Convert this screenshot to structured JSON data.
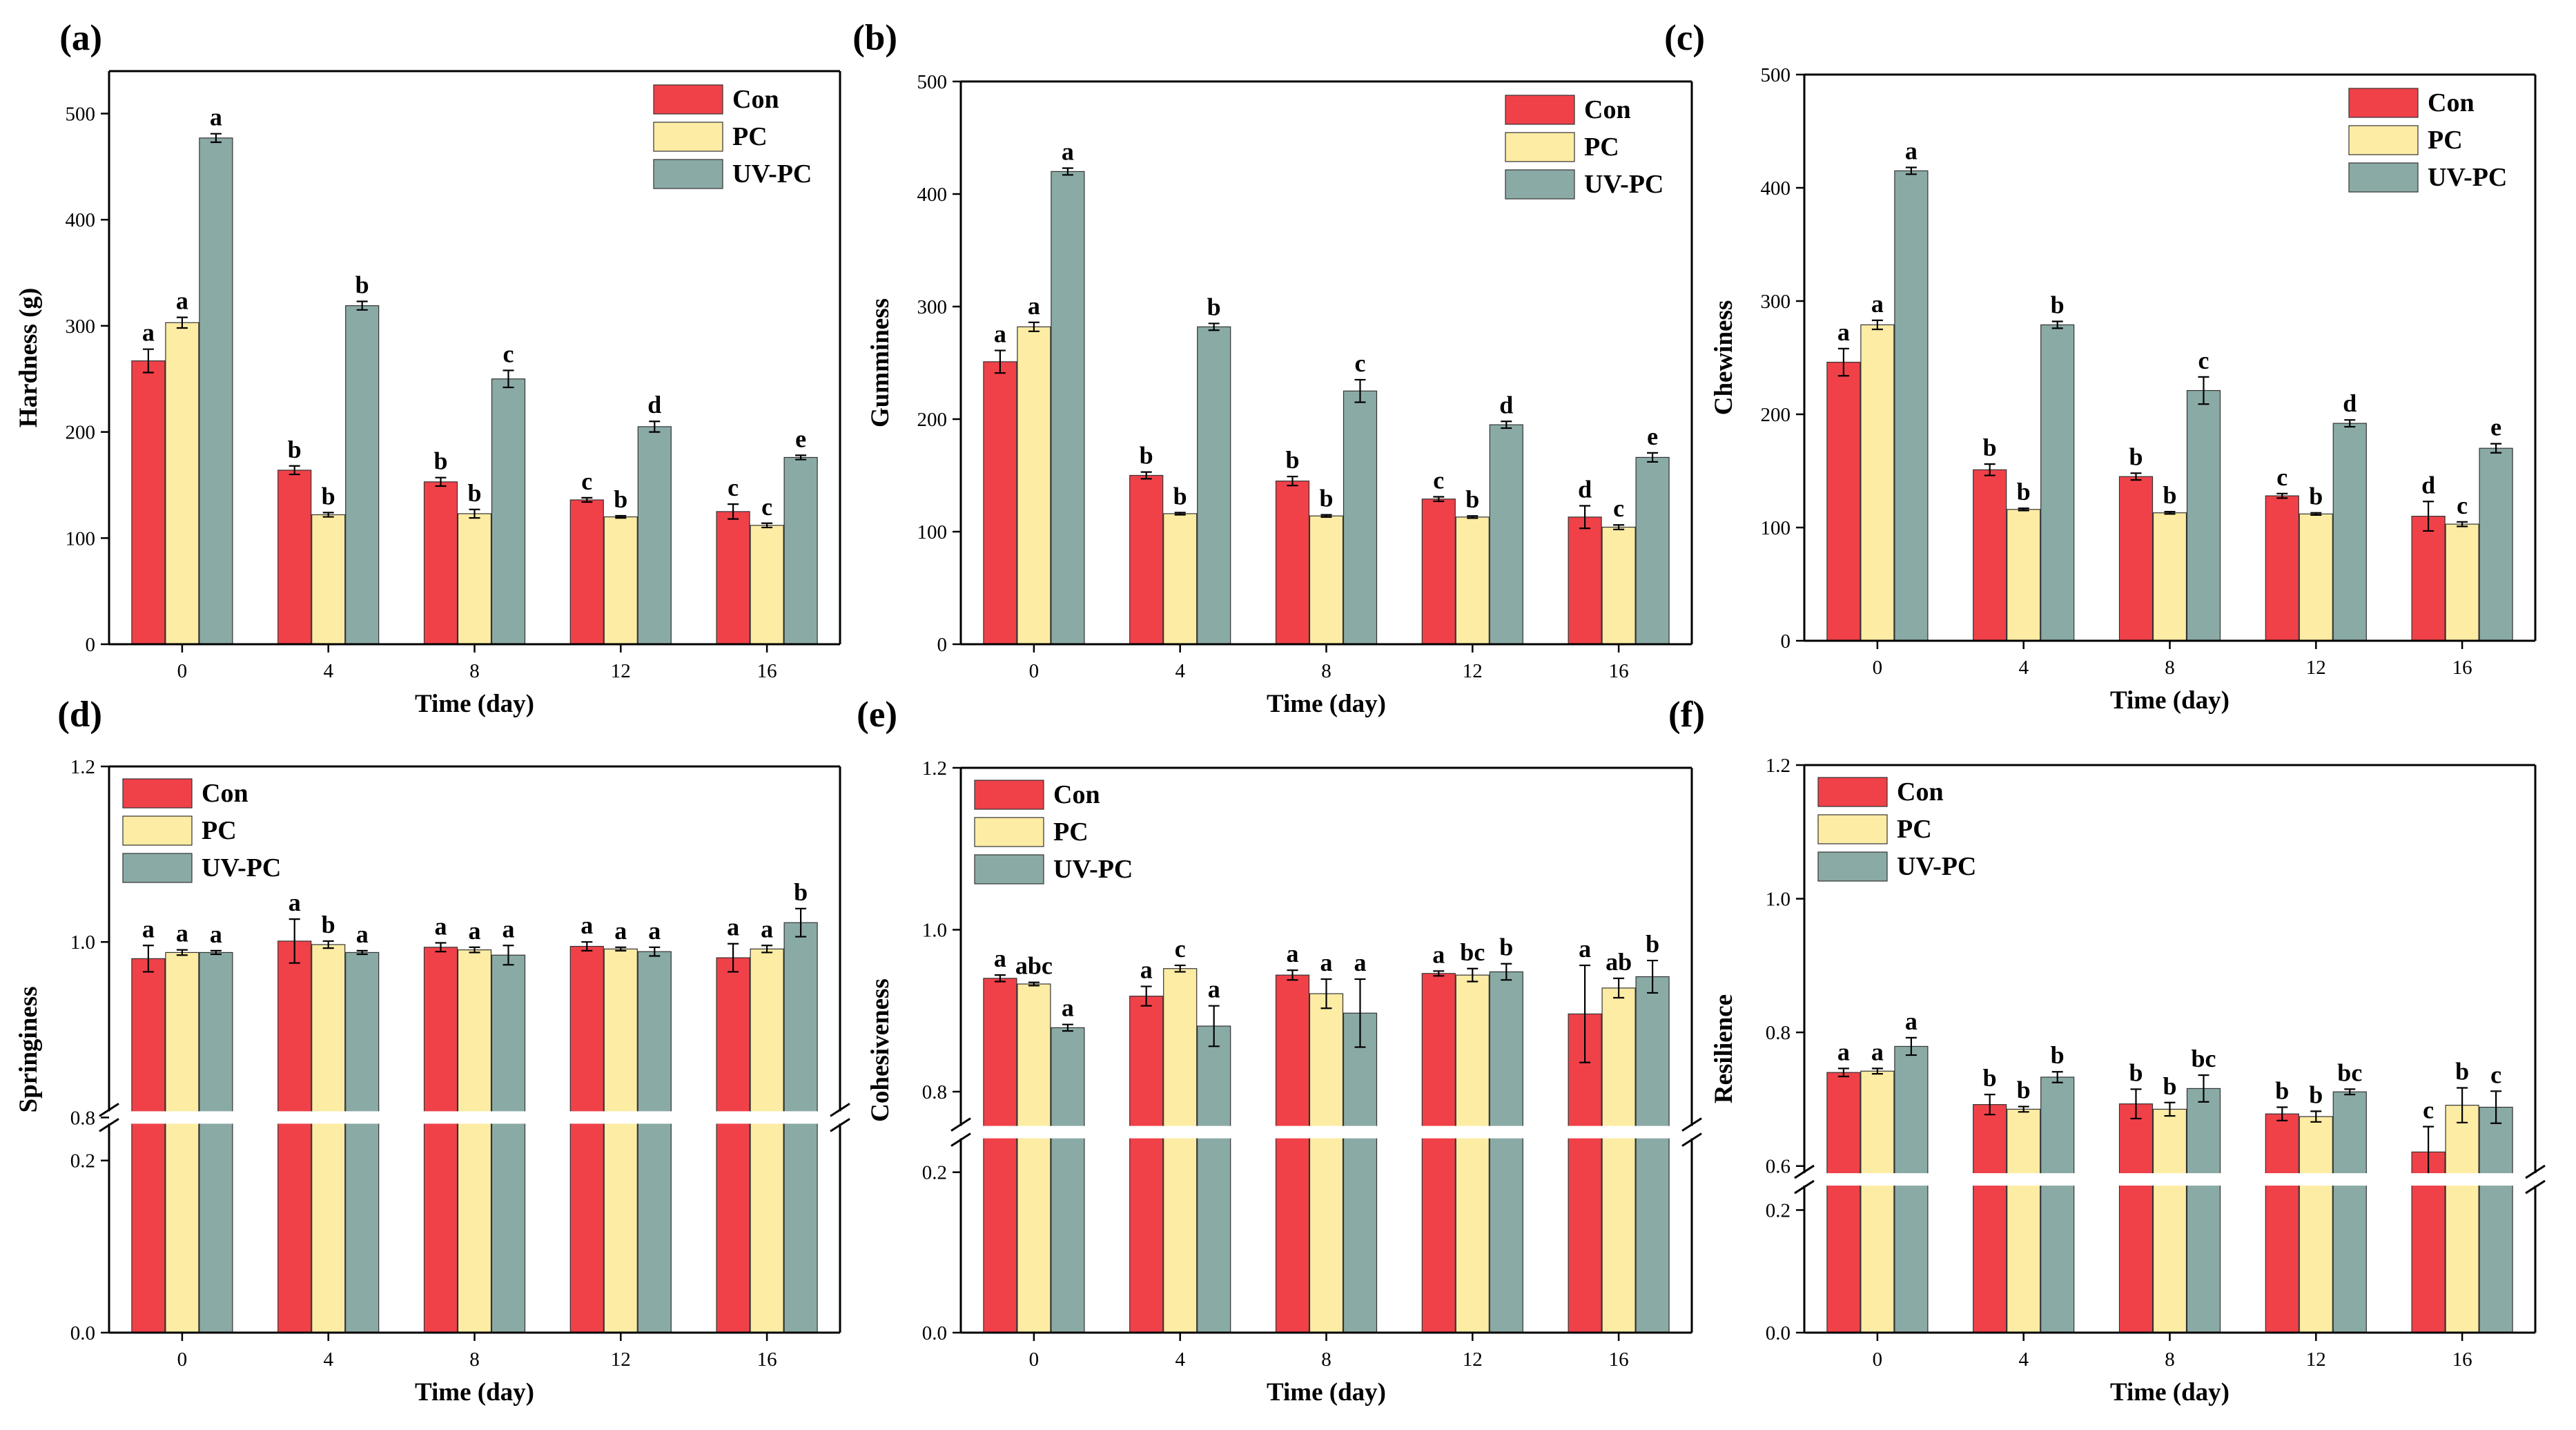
{
  "colors": {
    "Con": "#f04149",
    "PC": "#fdeca4",
    "UV-PC": "#8aaaa6",
    "axis": "#000000"
  },
  "chart_data": [
    {
      "type": "bar",
      "panel_label": "(a)",
      "xlabel": "Time (day)",
      "ylabel": "Hardness (g)",
      "categories": [
        "0",
        "4",
        "8",
        "12",
        "16"
      ],
      "ylim": [
        0,
        540
      ],
      "yticks": [
        "0",
        "100",
        "200",
        "300",
        "400",
        "500"
      ],
      "series": [
        {
          "name": "Con",
          "values": [
            267,
            164,
            153,
            136,
            125
          ],
          "errors": [
            11,
            4,
            4,
            2,
            7
          ],
          "letters": [
            "a",
            "b",
            "b",
            "c",
            "c"
          ]
        },
        {
          "name": "PC",
          "values": [
            303,
            122,
            123,
            120,
            112
          ],
          "errors": [
            5,
            2,
            4,
            1,
            2
          ],
          "letters": [
            "a",
            "b",
            "b",
            "b",
            "c"
          ]
        },
        {
          "name": "UV-PC",
          "values": [
            477,
            319,
            250,
            205,
            176
          ],
          "errors": [
            4,
            4,
            8,
            5,
            2
          ],
          "letters": [
            "a",
            "b",
            "c",
            "d",
            "e"
          ]
        }
      ],
      "legend": "top-right"
    },
    {
      "type": "bar",
      "panel_label": "(b)",
      "xlabel": "Time (day)",
      "ylabel": "Gumminess",
      "categories": [
        "0",
        "4",
        "8",
        "12",
        "16"
      ],
      "ylim": [
        0,
        500
      ],
      "yticks": [
        "0",
        "100",
        "200",
        "300",
        "400",
        "500"
      ],
      "series": [
        {
          "name": "Con",
          "values": [
            251,
            150,
            145,
            129,
            113
          ],
          "errors": [
            10,
            3,
            4,
            2,
            10
          ],
          "letters": [
            "a",
            "b",
            "b",
            "c",
            "d"
          ]
        },
        {
          "name": "PC",
          "values": [
            282,
            116,
            114,
            113,
            104
          ],
          "errors": [
            4,
            1,
            1,
            1,
            2
          ],
          "letters": [
            "a",
            "b",
            "b",
            "b",
            "c"
          ]
        },
        {
          "name": "UV-PC",
          "values": [
            420,
            282,
            225,
            195,
            166
          ],
          "errors": [
            3,
            3,
            10,
            3,
            4
          ],
          "letters": [
            "a",
            "b",
            "c",
            "d",
            "e"
          ]
        }
      ],
      "legend": "top-right"
    },
    {
      "type": "bar",
      "panel_label": "(c)",
      "xlabel": "Time (day)",
      "ylabel": "Chewiness",
      "categories": [
        "0",
        "4",
        "8",
        "12",
        "16"
      ],
      "ylim": [
        0,
        500
      ],
      "yticks": [
        "0",
        "100",
        "200",
        "300",
        "400",
        "500"
      ],
      "series": [
        {
          "name": "Con",
          "values": [
            246,
            151,
            145,
            128,
            110
          ],
          "errors": [
            12,
            5,
            3,
            2,
            13
          ],
          "letters": [
            "a",
            "b",
            "b",
            "c",
            "d"
          ]
        },
        {
          "name": "PC",
          "values": [
            279,
            116,
            113,
            112,
            103
          ],
          "errors": [
            4,
            1,
            1,
            1,
            2
          ],
          "letters": [
            "a",
            "b",
            "b",
            "b",
            "c"
          ]
        },
        {
          "name": "UV-PC",
          "values": [
            415,
            279,
            221,
            192,
            170
          ],
          "errors": [
            3,
            3,
            12,
            3,
            4
          ],
          "letters": [
            "a",
            "b",
            "c",
            "d",
            "e"
          ]
        }
      ],
      "legend": "top-right"
    },
    {
      "type": "bar",
      "panel_label": "(d)",
      "xlabel": "Time (day)",
      "ylabel": "Springiness",
      "categories": [
        "0",
        "4",
        "8",
        "12",
        "16"
      ],
      "broken_axis": {
        "lower": [
          0,
          0.25
        ],
        "upper": [
          0.8,
          1.2
        ]
      },
      "yticks_lower": [
        "0.0",
        "0.2"
      ],
      "yticks_upper": [
        "0.8",
        "1.0",
        "1.2"
      ],
      "series": [
        {
          "name": "Con",
          "values": [
            0.981,
            1.001,
            0.994,
            0.995,
            0.982
          ],
          "errors": [
            0.015,
            0.025,
            0.005,
            0.005,
            0.016
          ],
          "letters": [
            "a",
            "a",
            "a",
            "a",
            "a"
          ]
        },
        {
          "name": "PC",
          "values": [
            0.988,
            0.997,
            0.991,
            0.992,
            0.992
          ],
          "errors": [
            0.003,
            0.004,
            0.003,
            0.002,
            0.004
          ],
          "letters": [
            "a",
            "b",
            "a",
            "a",
            "a"
          ]
        },
        {
          "name": "UV-PC",
          "values": [
            0.988,
            0.988,
            0.985,
            0.989,
            1.022
          ],
          "errors": [
            0.002,
            0.002,
            0.011,
            0.005,
            0.016
          ],
          "letters": [
            "a",
            "a",
            "a",
            "a",
            "b"
          ]
        }
      ],
      "legend": "top-left"
    },
    {
      "type": "bar",
      "panel_label": "(e)",
      "xlabel": "Time (day)",
      "ylabel": "Cohesiveness",
      "categories": [
        "0",
        "4",
        "8",
        "12",
        "16"
      ],
      "broken_axis": {
        "lower": [
          0,
          0.25
        ],
        "upper": [
          0.75,
          1.2
        ]
      },
      "yticks_lower": [
        "0.0",
        "0.2"
      ],
      "yticks_upper": [
        "0.8",
        "1.0",
        "1.2"
      ],
      "series": [
        {
          "name": "Con",
          "values": [
            0.94,
            0.918,
            0.944,
            0.946,
            0.896
          ],
          "errors": [
            0.004,
            0.012,
            0.006,
            0.003,
            0.06
          ],
          "letters": [
            "a",
            "a",
            "a",
            "a",
            "a"
          ]
        },
        {
          "name": "PC",
          "values": [
            0.933,
            0.952,
            0.921,
            0.944,
            0.928
          ],
          "errors": [
            0.002,
            0.004,
            0.018,
            0.008,
            0.012
          ],
          "letters": [
            "abc",
            "c",
            "a",
            "bc",
            "ab"
          ]
        },
        {
          "name": "UV-PC",
          "values": [
            0.879,
            0.881,
            0.897,
            0.948,
            0.942
          ],
          "errors": [
            0.004,
            0.025,
            0.042,
            0.01,
            0.02
          ],
          "letters": [
            "a",
            "a",
            "a",
            "b",
            "b"
          ]
        }
      ],
      "legend": "top-left"
    },
    {
      "type": "bar",
      "panel_label": "(f)",
      "xlabel": "Time (day)",
      "ylabel": "Resilience",
      "categories": [
        "0",
        "4",
        "8",
        "12",
        "16"
      ],
      "broken_axis": {
        "lower": [
          0,
          0.25
        ],
        "upper": [
          0.58,
          1.2
        ]
      },
      "yticks_lower": [
        "0.0",
        "0.2"
      ],
      "yticks_upper": [
        "0.6",
        "0.8",
        "1.0",
        "1.2"
      ],
      "series": [
        {
          "name": "Con",
          "values": [
            0.74,
            0.692,
            0.693,
            0.678,
            0.621
          ],
          "errors": [
            0.006,
            0.015,
            0.022,
            0.01,
            0.038
          ],
          "letters": [
            "a",
            "b",
            "b",
            "b",
            "c"
          ]
        },
        {
          "name": "PC",
          "values": [
            0.742,
            0.685,
            0.685,
            0.674,
            0.691
          ],
          "errors": [
            0.004,
            0.004,
            0.01,
            0.008,
            0.026
          ],
          "letters": [
            "a",
            "b",
            "b",
            "b",
            "b"
          ]
        },
        {
          "name": "UV-PC",
          "values": [
            0.779,
            0.733,
            0.716,
            0.711,
            0.688
          ],
          "errors": [
            0.013,
            0.008,
            0.02,
            0.004,
            0.024
          ],
          "letters": [
            "a",
            "b",
            "bc",
            "bc",
            "c"
          ]
        }
      ],
      "legend": "top-left"
    }
  ]
}
